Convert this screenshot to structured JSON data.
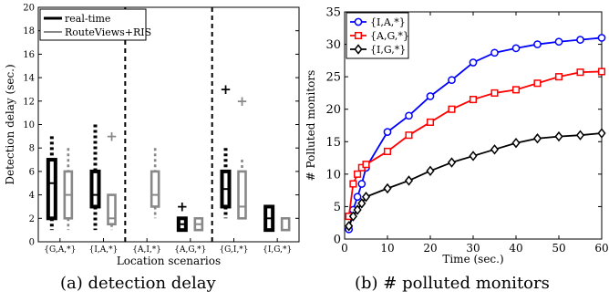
{
  "chart_data": [
    {
      "type": "boxplot",
      "ylabel": "Detection delay (sec.)",
      "xlabel": "Location scenarios",
      "ylim": [
        0,
        20
      ],
      "yticks": [
        0,
        2,
        4,
        6,
        8,
        10,
        12,
        14,
        16,
        18,
        20
      ],
      "categories": [
        "{G,A,*}",
        "{I,A,*}",
        "{A,I,*}",
        "{A,G,*}",
        "{G,I,*}",
        "{I,G,*}"
      ],
      "separators_after": [
        2,
        4
      ],
      "legend": {
        "position": "top-left",
        "entries": [
          "real-time",
          "RouteViews+RIS"
        ]
      },
      "series": [
        {
          "name": "real-time",
          "color": "#000000",
          "boxes": [
            {
              "category": "{G,A,*}",
              "min": 1,
              "q1": 2,
              "median": 5,
              "q3": 7,
              "max": 9,
              "outliers": []
            },
            {
              "category": "{I,A,*}",
              "min": 1,
              "q1": 3,
              "median": 4,
              "q3": 6,
              "max": 10,
              "outliers": []
            },
            {
              "category": "{A,G,*}",
              "min": 1,
              "q1": 1,
              "median": 1.5,
              "q3": 2,
              "max": 2,
              "outliers": [
                3
              ]
            },
            {
              "category": "{G,I,*}",
              "min": 2,
              "q1": 3,
              "median": 4.5,
              "q3": 6,
              "max": 8,
              "outliers": [
                13
              ]
            },
            {
              "category": "{I,G,*}",
              "min": 1,
              "q1": 1,
              "median": 2,
              "q3": 3,
              "max": 3,
              "outliers": []
            }
          ]
        },
        {
          "name": "RouteViews+RIS",
          "color": "#888888",
          "boxes": [
            {
              "category": "{G,A,*}",
              "min": 1,
              "q1": 2,
              "median": 4,
              "q3": 6,
              "max": 8,
              "outliers": []
            },
            {
              "category": "{I,A,*}",
              "min": 1,
              "q1": 1.5,
              "median": 2,
              "q3": 4,
              "max": 4,
              "outliers": [
                9
              ]
            },
            {
              "category": "{A,I,*}",
              "min": 2,
              "q1": 3,
              "median": 4,
              "q3": 6,
              "max": 8,
              "outliers": []
            },
            {
              "category": "{A,G,*}",
              "min": 1,
              "q1": 1,
              "median": 1.5,
              "q3": 2,
              "max": 2,
              "outliers": []
            },
            {
              "category": "{G,I,*}",
              "min": 2,
              "q1": 2,
              "median": 3,
              "q3": 6,
              "max": 7,
              "outliers": [
                12
              ]
            },
            {
              "category": "{I,G,*}",
              "min": 1,
              "q1": 1,
              "median": 2,
              "q3": 2,
              "max": 2,
              "outliers": []
            }
          ]
        }
      ],
      "caption": "(a) detection delay"
    },
    {
      "type": "line",
      "ylabel": "# Polluted monitors",
      "xlabel": "Time (sec.)",
      "xlim": [
        0,
        60
      ],
      "ylim": [
        0,
        35
      ],
      "xticks": [
        0,
        10,
        20,
        30,
        40,
        50,
        60
      ],
      "yticks": [
        0,
        5,
        10,
        15,
        20,
        25,
        30,
        35
      ],
      "legend": {
        "position": "top-left"
      },
      "x": [
        1,
        2,
        3,
        4,
        5,
        10,
        15,
        20,
        25,
        30,
        35,
        40,
        45,
        50,
        55,
        60
      ],
      "series": [
        {
          "name": "{I,A,*}",
          "color": "#0000ff",
          "marker": "circle",
          "values": [
            1.5,
            4.5,
            6.5,
            8.5,
            11,
            16.5,
            19,
            22,
            24.5,
            27.2,
            28.7,
            29.4,
            30,
            30.4,
            30.7,
            31
          ]
        },
        {
          "name": "{A,G,*}",
          "color": "#ff0000",
          "marker": "square",
          "values": [
            3.5,
            8.5,
            10,
            11,
            11.5,
            13.5,
            16,
            18,
            20,
            21.5,
            22.5,
            23,
            24,
            25,
            25.7,
            25.8
          ]
        },
        {
          "name": "{I,G,*}",
          "color": "#000000",
          "marker": "diamond",
          "values": [
            2,
            3.5,
            4.5,
            5.5,
            6.5,
            7.8,
            9,
            10.5,
            11.8,
            12.8,
            13.8,
            14.8,
            15.5,
            15.8,
            16,
            16.3
          ]
        }
      ],
      "caption": "(b) # polluted monitors"
    }
  ]
}
